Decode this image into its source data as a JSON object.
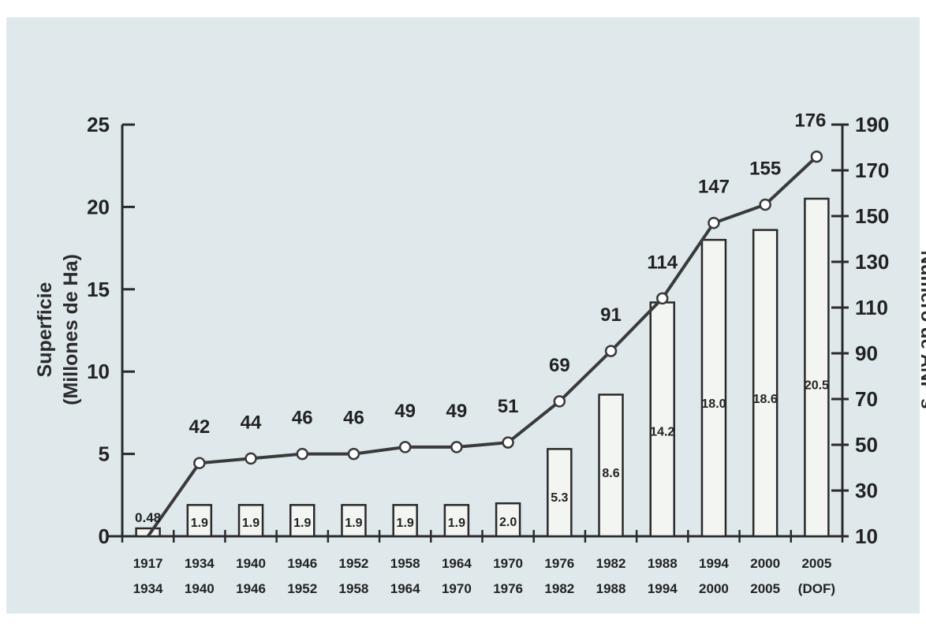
{
  "chart_data": {
    "type": "bar",
    "categories": [
      [
        "1917",
        "1934"
      ],
      [
        "1934",
        "1940"
      ],
      [
        "1940",
        "1946"
      ],
      [
        "1946",
        "1952"
      ],
      [
        "1952",
        "1958"
      ],
      [
        "1958",
        "1964"
      ],
      [
        "1964",
        "1970"
      ],
      [
        "1970",
        "1976"
      ],
      [
        "1976",
        "1982"
      ],
      [
        "1982",
        "1988"
      ],
      [
        "1988",
        "1994"
      ],
      [
        "1994",
        "2000"
      ],
      [
        "2000",
        "2005"
      ],
      [
        "2005",
        "(DOF)"
      ]
    ],
    "series": [
      {
        "type": "bar",
        "axis": "left",
        "values": [
          0.48,
          1.9,
          1.9,
          1.9,
          1.9,
          1.9,
          1.9,
          2.0,
          5.3,
          8.6,
          14.2,
          18.0,
          18.6,
          20.5
        ],
        "labels": [
          "0.48",
          "1.9",
          "1.9",
          "1.9",
          "1.9",
          "1.9",
          "1.9",
          "2.0",
          "5.3",
          "8.6",
          "14.2",
          "18.0",
          "18.6",
          "20.5"
        ]
      },
      {
        "type": "line",
        "axis": "right",
        "values": [
          10,
          42,
          44,
          46,
          46,
          49,
          49,
          51,
          69,
          91,
          114,
          147,
          155,
          176
        ],
        "labels": [
          "",
          "42",
          "44",
          "46",
          "46",
          "49",
          "49",
          "51",
          "69",
          "91",
          "114",
          "147",
          "155",
          "176"
        ]
      }
    ],
    "title": "",
    "xlabel": "",
    "ylabel": "Superficie (Millones de Ha)",
    "ylabel_lines": [
      "Superficie",
      "(Millones de Ha)"
    ],
    "y2label": "Número de ANP's",
    "ylim": [
      0,
      25
    ],
    "yticks": [
      0,
      5,
      10,
      15,
      20,
      25
    ],
    "y2lim": [
      10,
      190
    ],
    "y2ticks": [
      10,
      30,
      50,
      70,
      90,
      110,
      130,
      150,
      170,
      190
    ],
    "grid": false,
    "colors": {
      "background": "#dfe9ec",
      "ink": "#2a2a2a",
      "bar_fill": "#f3f5f2",
      "line": "#3a3a3a",
      "marker_fill": "#ffffff"
    }
  }
}
